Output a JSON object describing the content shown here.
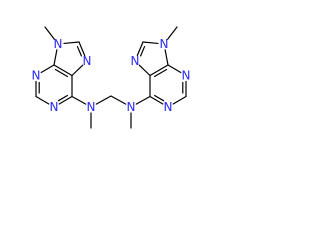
{
  "atoms": [
    "N",
    "N",
    "N",
    "N",
    "N",
    "N",
    "N",
    "N",
    "N",
    "N"
  ]
}
